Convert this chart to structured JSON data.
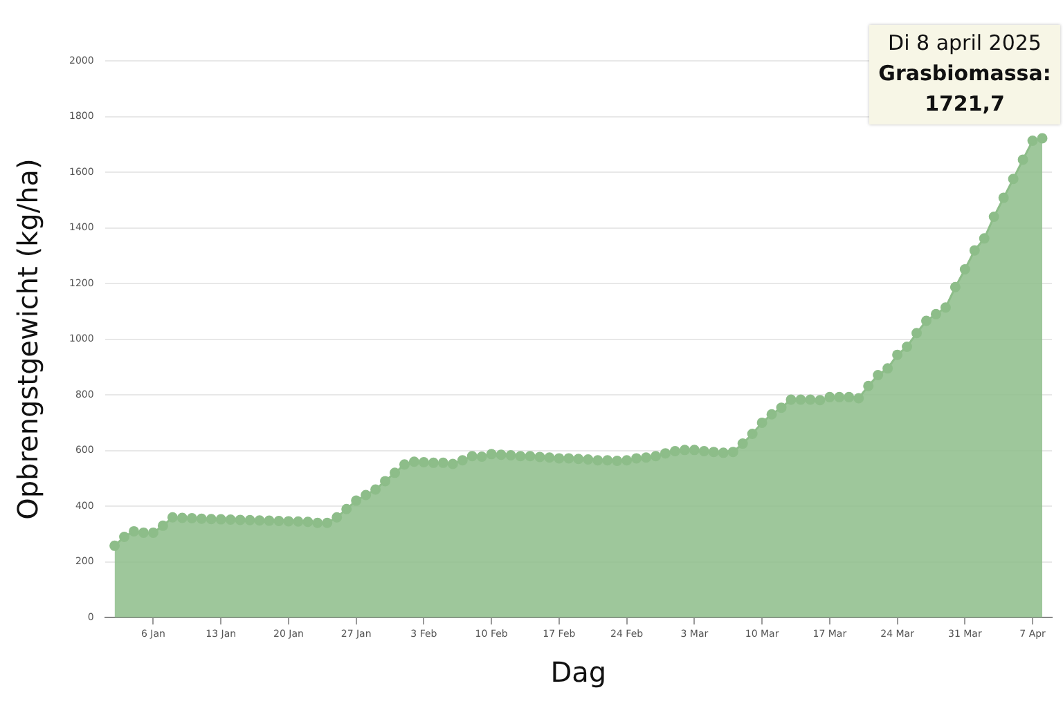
{
  "chart_data": {
    "type": "area",
    "xlabel": "Dag",
    "ylabel": "Opbrengstgewicht (kg/ha)",
    "x": [
      "2025-01-02",
      "2025-01-03",
      "2025-01-04",
      "2025-01-05",
      "2025-01-06",
      "2025-01-07",
      "2025-01-08",
      "2025-01-09",
      "2025-01-10",
      "2025-01-11",
      "2025-01-12",
      "2025-01-13",
      "2025-01-14",
      "2025-01-15",
      "2025-01-16",
      "2025-01-17",
      "2025-01-18",
      "2025-01-19",
      "2025-01-20",
      "2025-01-21",
      "2025-01-22",
      "2025-01-23",
      "2025-01-24",
      "2025-01-25",
      "2025-01-26",
      "2025-01-27",
      "2025-01-28",
      "2025-01-29",
      "2025-01-30",
      "2025-01-31",
      "2025-02-01",
      "2025-02-02",
      "2025-02-03",
      "2025-02-04",
      "2025-02-05",
      "2025-02-06",
      "2025-02-07",
      "2025-02-08",
      "2025-02-09",
      "2025-02-10",
      "2025-02-11",
      "2025-02-12",
      "2025-02-13",
      "2025-02-14",
      "2025-02-15",
      "2025-02-16",
      "2025-02-17",
      "2025-02-18",
      "2025-02-19",
      "2025-02-20",
      "2025-02-21",
      "2025-02-22",
      "2025-02-23",
      "2025-02-24",
      "2025-02-25",
      "2025-02-26",
      "2025-02-27",
      "2025-02-28",
      "2025-03-01",
      "2025-03-02",
      "2025-03-03",
      "2025-03-04",
      "2025-03-05",
      "2025-03-06",
      "2025-03-07",
      "2025-03-08",
      "2025-03-09",
      "2025-03-10",
      "2025-03-11",
      "2025-03-12",
      "2025-03-13",
      "2025-03-14",
      "2025-03-15",
      "2025-03-16",
      "2025-03-17",
      "2025-03-18",
      "2025-03-19",
      "2025-03-20",
      "2025-03-21",
      "2025-03-22",
      "2025-03-23",
      "2025-03-24",
      "2025-03-25",
      "2025-03-26",
      "2025-03-27",
      "2025-03-28",
      "2025-03-29",
      "2025-03-30",
      "2025-03-31",
      "2025-04-01",
      "2025-04-02",
      "2025-04-03",
      "2025-04-04",
      "2025-04-05",
      "2025-04-06",
      "2025-04-07",
      "2025-04-08"
    ],
    "series": [
      {
        "color": "#8dbd89",
        "values": [
          258,
          290,
          310,
          305,
          305,
          330,
          360,
          358,
          357,
          355,
          354,
          353,
          352,
          351,
          350,
          349,
          348,
          347,
          346,
          345,
          344,
          340,
          340,
          360,
          390,
          420,
          440,
          460,
          490,
          520,
          550,
          560,
          558,
          556,
          556,
          552,
          565,
          580,
          578,
          587,
          585,
          583,
          580,
          580,
          577,
          575,
          572,
          572,
          570,
          568,
          565,
          565,
          563,
          565,
          572,
          575,
          580,
          590,
          598,
          602,
          602,
          598,
          595,
          592,
          595,
          625,
          660,
          700,
          730,
          754,
          783,
          783,
          783,
          781,
          792,
          792,
          792,
          788,
          832,
          871,
          895,
          944,
          973,
          1022,
          1066,
          1090,
          1114,
          1187,
          1251,
          1319,
          1362,
          1440,
          1508,
          1576,
          1645,
          1713,
          1721.7
        ]
      }
    ],
    "xlim": [
      "2025-01-01",
      "2025-04-09"
    ],
    "xticks": [
      {
        "value": "2025-01-06",
        "label": "6 Jan"
      },
      {
        "value": "2025-01-13",
        "label": "13 Jan"
      },
      {
        "value": "2025-01-20",
        "label": "20 Jan"
      },
      {
        "value": "2025-01-27",
        "label": "27 Jan"
      },
      {
        "value": "2025-02-03",
        "label": "3 Feb"
      },
      {
        "value": "2025-02-10",
        "label": "10 Feb"
      },
      {
        "value": "2025-02-17",
        "label": "17 Feb"
      },
      {
        "value": "2025-02-24",
        "label": "24 Feb"
      },
      {
        "value": "2025-03-03",
        "label": "3 Mar"
      },
      {
        "value": "2025-03-10",
        "label": "10 Mar"
      },
      {
        "value": "2025-03-17",
        "label": "17 Mar"
      },
      {
        "value": "2025-03-24",
        "label": "24 Mar"
      },
      {
        "value": "2025-03-31",
        "label": "31 Mar"
      },
      {
        "value": "2025-04-07",
        "label": "7 Apr"
      }
    ],
    "ylim": [
      0,
      2000
    ],
    "yticks": [
      0,
      200,
      400,
      600,
      800,
      1000,
      1200,
      1400,
      1600,
      1800,
      2000
    ],
    "grid": "y",
    "legend": false,
    "marker": "circle",
    "annotations": [
      {
        "text": "Di 8 april 2025\nGrasbiomassa: 1721,7",
        "x": "2025-04-08",
        "y": 1721.7
      }
    ]
  }
}
